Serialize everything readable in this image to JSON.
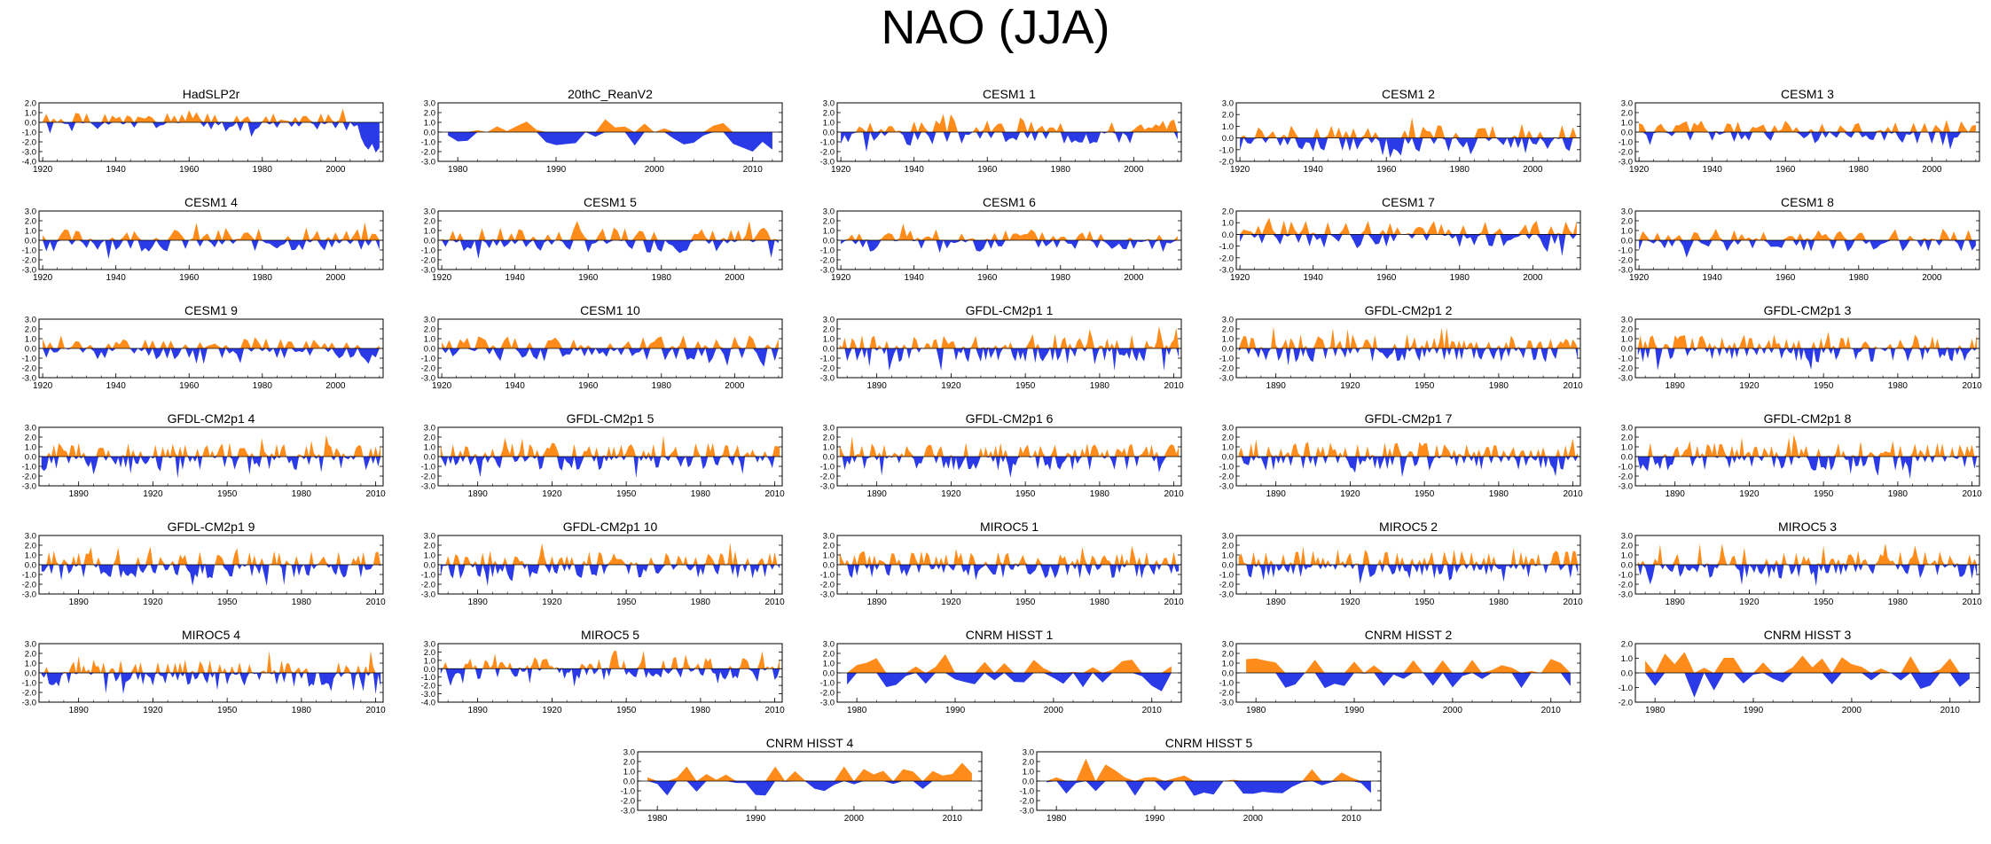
{
  "title": "NAO (JJA)",
  "colors": {
    "positive": "#ff8c1a",
    "negative": "#2a3ae6",
    "axis": "#000000"
  },
  "chart_data": [
    {
      "name": "HadSLP2r",
      "type": "area",
      "xticks": [
        1920,
        1940,
        1960,
        1980,
        2000
      ],
      "xlim": [
        1919,
        2013
      ],
      "yticks": [
        "2.0",
        "1.0",
        "0.0",
        "-1.0",
        "-2.0",
        "-3.0",
        "-4.0"
      ],
      "ylim": [
        -4,
        2
      ],
      "seed": 1,
      "step": 1,
      "amp": 0.8,
      "tail": [
        -1.6,
        -2.4,
        -2.8,
        -2.2,
        -3.1,
        -2.6
      ]
    },
    {
      "name": "20thC_ReanV2",
      "type": "area",
      "xticks": [
        1980,
        1990,
        2000,
        2010
      ],
      "xlim": [
        1978,
        2013
      ],
      "yticks": [
        "3.0",
        "2.0",
        "1.0",
        "0.0",
        "-1.0",
        "-2.0",
        "-3.0"
      ],
      "ylim": [
        -3,
        3
      ],
      "seed": 2,
      "step": 1,
      "amp": 1.2,
      "tail": [
        -1.2,
        -1.6,
        -2.0,
        -1.0,
        -1.8
      ]
    },
    {
      "name": "CESM1 1",
      "type": "area",
      "xticks": [
        1920,
        1940,
        1960,
        1980,
        2000
      ],
      "xlim": [
        1919,
        2013
      ],
      "yticks": [
        "3.0",
        "2.0",
        "1.0",
        "0.0",
        "-1.0",
        "-2.0",
        "-3.0"
      ],
      "ylim": [
        -3,
        3
      ],
      "seed": 3,
      "step": 1,
      "amp": 1.1
    },
    {
      "name": "CESM1 2",
      "type": "area",
      "xticks": [
        1920,
        1940,
        1960,
        1980,
        2000
      ],
      "xlim": [
        1919,
        2013
      ],
      "yticks": [
        "3.0",
        "2.0",
        "1.0",
        "0.0",
        "-1.0",
        "-2.0"
      ],
      "ylim": [
        -2,
        3
      ],
      "seed": 4,
      "step": 1,
      "amp": 1.0
    },
    {
      "name": "CESM1 3",
      "type": "area",
      "xticks": [
        1920,
        1940,
        1960,
        1980,
        2000
      ],
      "xlim": [
        1919,
        2013
      ],
      "yticks": [
        "3.0",
        "2.0",
        "1.0",
        "0.0",
        "-1.0",
        "-2.0",
        "-3.0"
      ],
      "ylim": [
        -3,
        3
      ],
      "seed": 5,
      "step": 1,
      "amp": 1.0
    },
    {
      "name": "CESM1 4",
      "type": "area",
      "xticks": [
        1920,
        1940,
        1960,
        1980,
        2000
      ],
      "xlim": [
        1919,
        2013
      ],
      "yticks": [
        "3.0",
        "2.0",
        "1.0",
        "0.0",
        "-1.0",
        "-2.0",
        "-3.0"
      ],
      "ylim": [
        -3,
        3
      ],
      "seed": 6,
      "step": 1,
      "amp": 1.0
    },
    {
      "name": "CESM1 5",
      "type": "area",
      "xticks": [
        1920,
        1940,
        1960,
        1980,
        2000
      ],
      "xlim": [
        1919,
        2013
      ],
      "yticks": [
        "3.0",
        "2.0",
        "1.0",
        "0.0",
        "-1.0",
        "-2.0",
        "-3.0"
      ],
      "ylim": [
        -3,
        3
      ],
      "seed": 7,
      "step": 1,
      "amp": 1.1
    },
    {
      "name": "CESM1 6",
      "type": "area",
      "xticks": [
        1920,
        1940,
        1960,
        1980,
        2000
      ],
      "xlim": [
        1919,
        2013
      ],
      "yticks": [
        "3.0",
        "2.0",
        "1.0",
        "0.0",
        "-1.0",
        "-2.0",
        "-3.0"
      ],
      "ylim": [
        -3,
        3
      ],
      "seed": 8,
      "step": 1,
      "amp": 1.0
    },
    {
      "name": "CESM1 7",
      "type": "area",
      "xticks": [
        1920,
        1940,
        1960,
        1980,
        2000
      ],
      "xlim": [
        1919,
        2013
      ],
      "yticks": [
        "2.0",
        "1.0",
        "0.0",
        "-1.0",
        "-2.0",
        "-3.0"
      ],
      "ylim": [
        -3,
        2
      ],
      "seed": 9,
      "step": 1,
      "amp": 1.0
    },
    {
      "name": "CESM1 8",
      "type": "area",
      "xticks": [
        1920,
        1940,
        1960,
        1980,
        2000
      ],
      "xlim": [
        1919,
        2013
      ],
      "yticks": [
        "3.0",
        "2.0",
        "1.0",
        "0.0",
        "-1.0",
        "-2.0",
        "-3.0"
      ],
      "ylim": [
        -3,
        3
      ],
      "seed": 10,
      "step": 1,
      "amp": 1.0
    },
    {
      "name": "CESM1 9",
      "type": "area",
      "xticks": [
        1920,
        1940,
        1960,
        1980,
        2000
      ],
      "xlim": [
        1919,
        2013
      ],
      "yticks": [
        "3.0",
        "2.0",
        "1.0",
        "0.0",
        "-1.0",
        "-2.0",
        "-3.0"
      ],
      "ylim": [
        -3,
        3
      ],
      "seed": 11,
      "step": 1,
      "amp": 1.0
    },
    {
      "name": "CESM1 10",
      "type": "area",
      "xticks": [
        1920,
        1940,
        1960,
        1980,
        2000
      ],
      "xlim": [
        1919,
        2013
      ],
      "yticks": [
        "3.0",
        "2.0",
        "1.0",
        "0.0",
        "-1.0",
        "-2.0",
        "-3.0"
      ],
      "ylim": [
        -3,
        3
      ],
      "seed": 12,
      "step": 1,
      "amp": 1.1
    },
    {
      "name": "GFDL-CM2p1 1",
      "type": "area",
      "xticks": [
        1890,
        1920,
        1950,
        1980,
        2010
      ],
      "xlim": [
        1874,
        2013
      ],
      "yticks": [
        "3.0",
        "2.0",
        "1.0",
        "0.0",
        "-1.0",
        "-2.0",
        "-3.0"
      ],
      "ylim": [
        -3,
        3
      ],
      "seed": 13,
      "step": 1,
      "amp": 1.2
    },
    {
      "name": "GFDL-CM2p1 2",
      "type": "area",
      "xticks": [
        1890,
        1920,
        1950,
        1980,
        2010
      ],
      "xlim": [
        1874,
        2013
      ],
      "yticks": [
        "3.0",
        "2.0",
        "1.0",
        "0.0",
        "-1.0",
        "-2.0",
        "-3.0"
      ],
      "ylim": [
        -3,
        3
      ],
      "seed": 14,
      "step": 1,
      "amp": 1.2
    },
    {
      "name": "GFDL-CM2p1 3",
      "type": "area",
      "xticks": [
        1890,
        1920,
        1950,
        1980,
        2010
      ],
      "xlim": [
        1874,
        2013
      ],
      "yticks": [
        "3.0",
        "2.0",
        "1.0",
        "0.0",
        "-1.0",
        "-2.0",
        "-3.0"
      ],
      "ylim": [
        -3,
        3
      ],
      "seed": 15,
      "step": 1,
      "amp": 1.2
    },
    {
      "name": "GFDL-CM2p1 4",
      "type": "area",
      "xticks": [
        1890,
        1920,
        1950,
        1980,
        2010
      ],
      "xlim": [
        1874,
        2013
      ],
      "yticks": [
        "3.0",
        "2.0",
        "1.0",
        "0.0",
        "-1.0",
        "-2.0",
        "-3.0"
      ],
      "ylim": [
        -3,
        3
      ],
      "seed": 16,
      "step": 1,
      "amp": 1.2
    },
    {
      "name": "GFDL-CM2p1 5",
      "type": "area",
      "xticks": [
        1890,
        1920,
        1950,
        1980,
        2010
      ],
      "xlim": [
        1874,
        2013
      ],
      "yticks": [
        "3.0",
        "2.0",
        "1.0",
        "0.0",
        "-1.0",
        "-2.0",
        "-3.0"
      ],
      "ylim": [
        -3,
        3
      ],
      "seed": 17,
      "step": 1,
      "amp": 1.2
    },
    {
      "name": "GFDL-CM2p1 6",
      "type": "area",
      "xticks": [
        1890,
        1920,
        1950,
        1980,
        2010
      ],
      "xlim": [
        1874,
        2013
      ],
      "yticks": [
        "3.0",
        "2.0",
        "1.0",
        "0.0",
        "-1.0",
        "-2.0",
        "-3.0"
      ],
      "ylim": [
        -3,
        3
      ],
      "seed": 18,
      "step": 1,
      "amp": 1.2
    },
    {
      "name": "GFDL-CM2p1 7",
      "type": "area",
      "xticks": [
        1890,
        1920,
        1950,
        1980,
        2010
      ],
      "xlim": [
        1874,
        2013
      ],
      "yticks": [
        "3.0",
        "2.0",
        "1.0",
        "0.0",
        "-1.0",
        "-2.0",
        "-3.0"
      ],
      "ylim": [
        -3,
        3
      ],
      "seed": 19,
      "step": 1,
      "amp": 1.2
    },
    {
      "name": "GFDL-CM2p1 8",
      "type": "area",
      "xticks": [
        1890,
        1920,
        1950,
        1980,
        2010
      ],
      "xlim": [
        1874,
        2013
      ],
      "yticks": [
        "3.0",
        "2.0",
        "1.0",
        "0.0",
        "-1.0",
        "-2.0",
        "-3.0"
      ],
      "ylim": [
        -3,
        3
      ],
      "seed": 20,
      "step": 1,
      "amp": 1.2
    },
    {
      "name": "GFDL-CM2p1 9",
      "type": "area",
      "xticks": [
        1890,
        1920,
        1950,
        1980,
        2010
      ],
      "xlim": [
        1874,
        2013
      ],
      "yticks": [
        "3.0",
        "2.0",
        "1.0",
        "0.0",
        "-1.0",
        "-2.0",
        "-3.0"
      ],
      "ylim": [
        -3,
        3
      ],
      "seed": 21,
      "step": 1,
      "amp": 1.2
    },
    {
      "name": "GFDL-CM2p1 10",
      "type": "area",
      "xticks": [
        1890,
        1920,
        1950,
        1980,
        2010
      ],
      "xlim": [
        1874,
        2013
      ],
      "yticks": [
        "3.0",
        "2.0",
        "1.0",
        "0.0",
        "-1.0",
        "-2.0",
        "-3.0"
      ],
      "ylim": [
        -3,
        3
      ],
      "seed": 22,
      "step": 1,
      "amp": 1.2
    },
    {
      "name": "MIROC5 1",
      "type": "area",
      "xticks": [
        1890,
        1920,
        1950,
        1980,
        2010
      ],
      "xlim": [
        1874,
        2013
      ],
      "yticks": [
        "3.0",
        "2.0",
        "1.0",
        "0.0",
        "-1.0",
        "-2.0",
        "-3.0"
      ],
      "ylim": [
        -3,
        3
      ],
      "seed": 23,
      "step": 1,
      "amp": 1.2
    },
    {
      "name": "MIROC5 2",
      "type": "area",
      "xticks": [
        1890,
        1920,
        1950,
        1980,
        2010
      ],
      "xlim": [
        1874,
        2013
      ],
      "yticks": [
        "3.0",
        "2.0",
        "1.0",
        "0.0",
        "-1.0",
        "-2.0",
        "-3.0"
      ],
      "ylim": [
        -3,
        3
      ],
      "seed": 24,
      "step": 1,
      "amp": 1.2
    },
    {
      "name": "MIROC5 3",
      "type": "area",
      "xticks": [
        1890,
        1920,
        1950,
        1980,
        2010
      ],
      "xlim": [
        1874,
        2013
      ],
      "yticks": [
        "3.0",
        "2.0",
        "1.0",
        "0.0",
        "-1.0",
        "-2.0",
        "-3.0"
      ],
      "ylim": [
        -3,
        3
      ],
      "seed": 25,
      "step": 1,
      "amp": 1.2
    },
    {
      "name": "MIROC5 4",
      "type": "area",
      "xticks": [
        1890,
        1920,
        1950,
        1980,
        2010
      ],
      "xlim": [
        1874,
        2013
      ],
      "yticks": [
        "3.0",
        "2.0",
        "1.0",
        "0.0",
        "-1.0",
        "-2.0",
        "-3.0"
      ],
      "ylim": [
        -3,
        3
      ],
      "seed": 26,
      "step": 1,
      "amp": 1.2
    },
    {
      "name": "MIROC5 5",
      "type": "area",
      "xticks": [
        1890,
        1920,
        1950,
        1980,
        2010
      ],
      "xlim": [
        1874,
        2013
      ],
      "yticks": [
        "3.0",
        "2.0",
        "1.0",
        "0.0",
        "-1.0",
        "-2.0",
        "-3.0",
        "-4.0"
      ],
      "ylim": [
        -4,
        3
      ],
      "seed": 27,
      "step": 1,
      "amp": 1.2
    },
    {
      "name": "CNRM HISST 1",
      "type": "area",
      "xticks": [
        1980,
        1990,
        2000,
        2010
      ],
      "xlim": [
        1978,
        2013
      ],
      "yticks": [
        "3.0",
        "2.0",
        "1.0",
        "0.0",
        "-1.0",
        "-2.0",
        "-3.0"
      ],
      "ylim": [
        -3,
        3
      ],
      "seed": 28,
      "step": 1,
      "amp": 1.3
    },
    {
      "name": "CNRM HISST 2",
      "type": "area",
      "xticks": [
        1980,
        1990,
        2000,
        2010
      ],
      "xlim": [
        1978,
        2013
      ],
      "yticks": [
        "3.0",
        "2.0",
        "1.0",
        "0.0",
        "-1.0",
        "-2.0",
        "-3.0"
      ],
      "ylim": [
        -3,
        3
      ],
      "seed": 29,
      "step": 1,
      "amp": 1.3
    },
    {
      "name": "CNRM HISST 3",
      "type": "area",
      "xticks": [
        1980,
        1990,
        2000,
        2010
      ],
      "xlim": [
        1978,
        2013
      ],
      "yticks": [
        "2.0",
        "1.0",
        "0.0",
        "-1.0",
        "-2.0"
      ],
      "ylim": [
        -2,
        2
      ],
      "seed": 30,
      "step": 1,
      "amp": 1.2
    },
    {
      "name": "CNRM HISST 4",
      "type": "area",
      "xticks": [
        1980,
        1990,
        2000,
        2010
      ],
      "xlim": [
        1978,
        2013
      ],
      "yticks": [
        "3.0",
        "2.0",
        "1.0",
        "0.0",
        "-1.0",
        "-2.0",
        "-3.0"
      ],
      "ylim": [
        -3,
        3
      ],
      "seed": 31,
      "step": 1,
      "amp": 1.3
    },
    {
      "name": "CNRM HISST 5",
      "type": "area",
      "xticks": [
        1980,
        1990,
        2000,
        2010
      ],
      "xlim": [
        1978,
        2013
      ],
      "yticks": [
        "3.0",
        "2.0",
        "1.0",
        "0.0",
        "-1.0",
        "-2.0",
        "-3.0"
      ],
      "ylim": [
        -3,
        3
      ],
      "seed": 32,
      "step": 1,
      "amp": 1.3
    }
  ]
}
